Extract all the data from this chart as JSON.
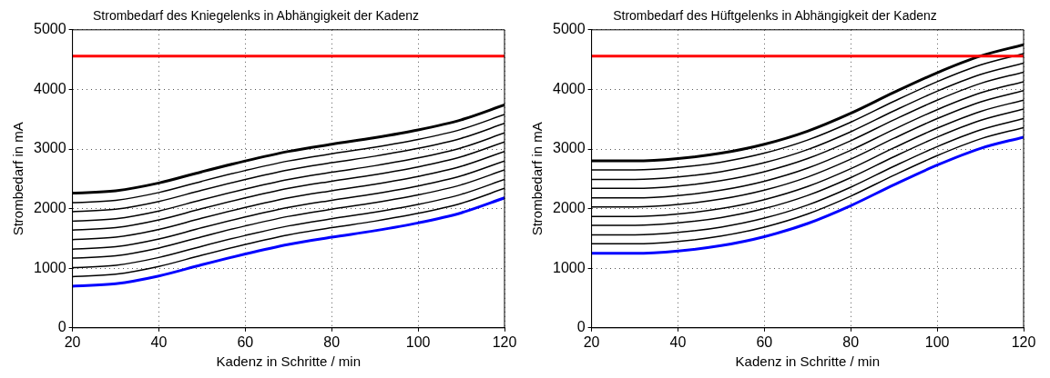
{
  "chart_data": [
    {
      "type": "line",
      "title": "Strombedarf des Kniegelenks in Abhängigkeit der Kadenz",
      "xlabel": "Kadenz in Schritte / min",
      "ylabel": "Strombedarf in mA",
      "x": [
        20,
        30,
        40,
        50,
        60,
        70,
        80,
        90,
        100,
        110,
        120
      ],
      "series": [
        {
          "color": "#000000",
          "values": [
            2260,
            2300,
            2430,
            2620,
            2800,
            2960,
            3080,
            3190,
            3320,
            3490,
            3740
          ]
        },
        {
          "color": "#000000",
          "values": [
            2100,
            2140,
            2270,
            2460,
            2640,
            2800,
            2920,
            3030,
            3160,
            3330,
            3580
          ]
        },
        {
          "color": "#000000",
          "values": [
            1950,
            1990,
            2120,
            2310,
            2490,
            2650,
            2770,
            2880,
            3010,
            3180,
            3430
          ]
        },
        {
          "color": "#000000",
          "values": [
            1790,
            1830,
            1960,
            2150,
            2330,
            2490,
            2610,
            2720,
            2850,
            3020,
            3270
          ]
        },
        {
          "color": "#000000",
          "values": [
            1640,
            1680,
            1810,
            2000,
            2180,
            2340,
            2460,
            2570,
            2700,
            2870,
            3120
          ]
        },
        {
          "color": "#000000",
          "values": [
            1480,
            1520,
            1650,
            1840,
            2020,
            2180,
            2300,
            2410,
            2540,
            2710,
            2960
          ]
        },
        {
          "color": "#000000",
          "values": [
            1320,
            1360,
            1490,
            1680,
            1860,
            2020,
            2140,
            2250,
            2380,
            2550,
            2800
          ]
        },
        {
          "color": "#000000",
          "values": [
            1170,
            1210,
            1340,
            1530,
            1710,
            1870,
            1990,
            2100,
            2230,
            2400,
            2650
          ]
        },
        {
          "color": "#000000",
          "values": [
            1010,
            1050,
            1180,
            1370,
            1550,
            1710,
            1830,
            1940,
            2070,
            2240,
            2490
          ]
        },
        {
          "color": "#000000",
          "values": [
            860,
            900,
            1030,
            1220,
            1400,
            1560,
            1680,
            1790,
            1920,
            2090,
            2340
          ]
        },
        {
          "color": "#0000ff",
          "values": [
            700,
            740,
            870,
            1060,
            1240,
            1400,
            1520,
            1630,
            1760,
            1930,
            2180
          ]
        }
      ],
      "ref_lines": [
        {
          "axis": "y",
          "value": 4560,
          "color": "#ff0000"
        }
      ],
      "xlim": [
        20,
        120
      ],
      "xticks": [
        20,
        40,
        60,
        80,
        100,
        120
      ],
      "ylim": [
        0,
        5000
      ],
      "yticks": [
        0,
        1000,
        2000,
        3000,
        4000,
        5000
      ],
      "grid": true,
      "legend": false,
      "marker": "none",
      "line_style": "solid"
    },
    {
      "type": "line",
      "title": "Strombedarf des Hüftgelenks in Abhängigkeit der Kadenz",
      "xlabel": "Kadenz in Schritte / min",
      "ylabel": "Strombedarf in mA",
      "x": [
        20,
        30,
        40,
        50,
        60,
        70,
        80,
        90,
        100,
        110,
        120
      ],
      "series": [
        {
          "color": "#000000",
          "values": [
            2800,
            2800,
            2840,
            2930,
            3080,
            3300,
            3600,
            3950,
            4280,
            4560,
            4750
          ]
        },
        {
          "color": "#000000",
          "values": [
            2650,
            2650,
            2690,
            2780,
            2930,
            3150,
            3450,
            3800,
            4130,
            4410,
            4600
          ]
        },
        {
          "color": "#000000",
          "values": [
            2490,
            2490,
            2530,
            2620,
            2770,
            2990,
            3290,
            3640,
            3970,
            4250,
            4440
          ]
        },
        {
          "color": "#000000",
          "values": [
            2340,
            2340,
            2380,
            2470,
            2620,
            2840,
            3140,
            3490,
            3820,
            4100,
            4290
          ]
        },
        {
          "color": "#000000",
          "values": [
            2180,
            2180,
            2220,
            2310,
            2460,
            2680,
            2980,
            3330,
            3660,
            3940,
            4130
          ]
        },
        {
          "color": "#000000",
          "values": [
            2030,
            2030,
            2070,
            2160,
            2310,
            2530,
            2830,
            3180,
            3510,
            3790,
            3980
          ]
        },
        {
          "color": "#000000",
          "values": [
            1870,
            1870,
            1910,
            2000,
            2150,
            2370,
            2670,
            3020,
            3350,
            3630,
            3820
          ]
        },
        {
          "color": "#000000",
          "values": [
            1720,
            1720,
            1760,
            1850,
            2000,
            2220,
            2520,
            2870,
            3200,
            3480,
            3670
          ]
        },
        {
          "color": "#000000",
          "values": [
            1560,
            1560,
            1600,
            1690,
            1840,
            2060,
            2360,
            2710,
            3040,
            3320,
            3510
          ]
        },
        {
          "color": "#000000",
          "values": [
            1410,
            1410,
            1450,
            1540,
            1690,
            1910,
            2210,
            2560,
            2890,
            3170,
            3360
          ]
        },
        {
          "color": "#0000ff",
          "values": [
            1250,
            1250,
            1290,
            1380,
            1530,
            1750,
            2050,
            2400,
            2730,
            3010,
            3200
          ]
        }
      ],
      "ref_lines": [
        {
          "axis": "y",
          "value": 4560,
          "color": "#ff0000"
        }
      ],
      "xlim": [
        20,
        120
      ],
      "xticks": [
        20,
        40,
        60,
        80,
        100,
        120
      ],
      "ylim": [
        0,
        5000
      ],
      "yticks": [
        0,
        1000,
        2000,
        3000,
        4000,
        5000
      ],
      "grid": true,
      "legend": false,
      "marker": "none",
      "line_style": "solid"
    }
  ]
}
